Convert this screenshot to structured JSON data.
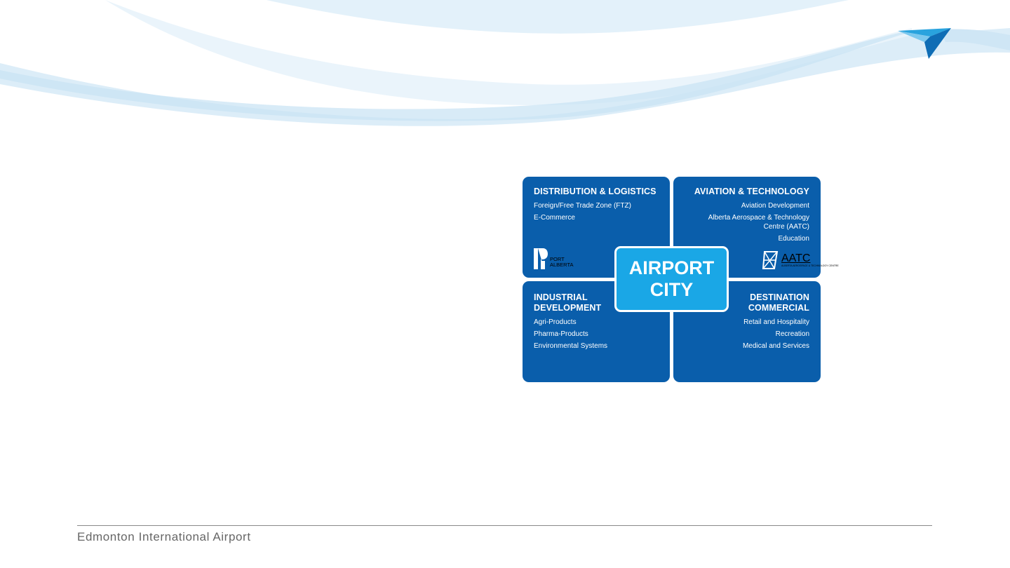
{
  "quadrants": {
    "top_left": {
      "title": "DISTRIBUTION & LOGISTICS",
      "items": [
        "Foreign/Free Trade Zone (FTZ)",
        "E-Commerce"
      ]
    },
    "top_right": {
      "title": "AVIATION & TECHNOLOGY",
      "items": [
        "Aviation Development",
        "Alberta Aerospace & Technology Centre (AATC)",
        "Education"
      ]
    },
    "bottom_left": {
      "title": "INDUSTRIAL DEVELOPMENT",
      "items": [
        "Agri-Products",
        "Pharma-Products",
        "Environmental Systems"
      ]
    },
    "bottom_right": {
      "title": "DESTINATION COMMERCIAL",
      "items": [
        "Retail and Hospitality",
        "Recreation",
        "Medical and Services"
      ]
    }
  },
  "center": {
    "line1": "AIRPORT",
    "line2": "CITY"
  },
  "logos": {
    "port_alberta": {
      "line1": "PORT",
      "line2": "ALBERTA"
    },
    "aatc": {
      "name": "AATC",
      "subtitle": "ALBERTA AEROSPACE & TECHNOLOGY CENTRE"
    }
  },
  "footer": {
    "text": "Edmonton International Airport"
  },
  "colors": {
    "quadrant": "#0a5eab",
    "center": "#1aa7e6",
    "swoosh": "#cfe6f5",
    "footer_text": "#666666"
  },
  "icons": {
    "corner_logo": "paper-plane-icon"
  }
}
